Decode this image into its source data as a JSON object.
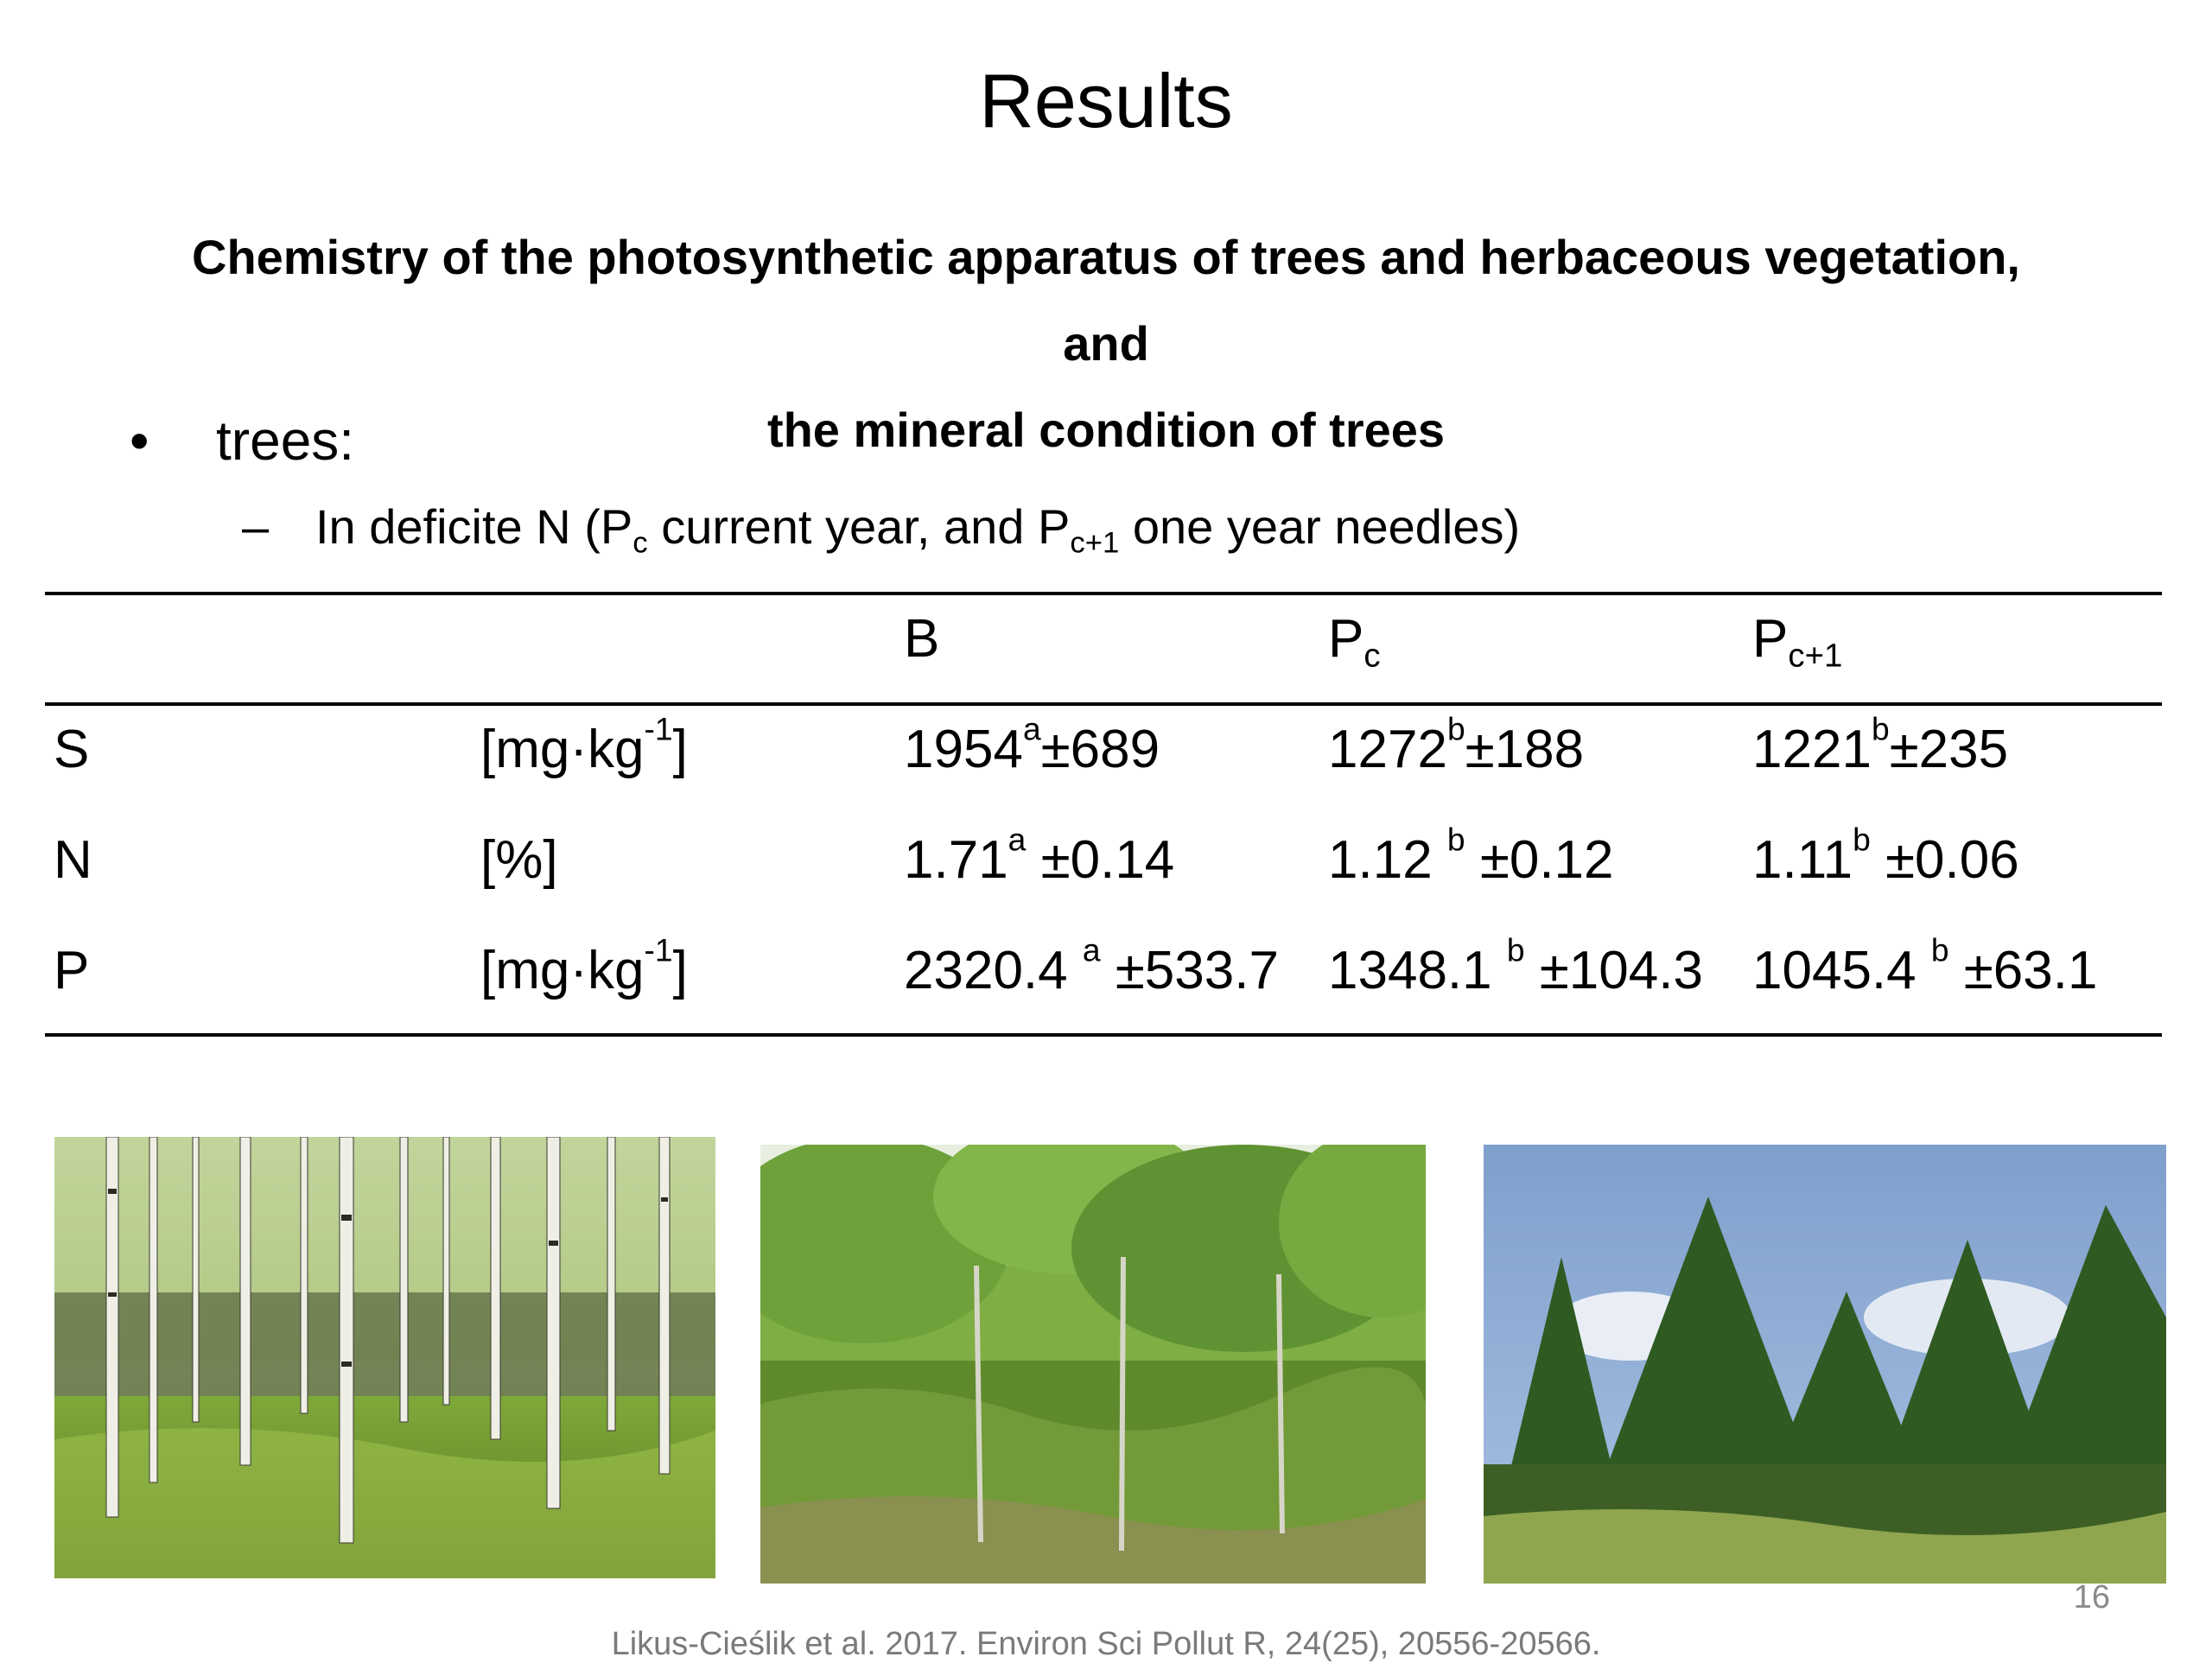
{
  "slide": {
    "title": "Results",
    "subtitle_line1": "Chemistry of the photosynthetic apparatus of trees and herbaceous vegetation, and",
    "subtitle_line2": "the mineral condition of trees",
    "bullet_main": "trees:",
    "bullet_sub_prefix": "In deficite N (P",
    "bullet_sub_sub1": "c",
    "bullet_sub_mid": "current year, and P",
    "bullet_sub_sub2": "c+1",
    "bullet_sub_suffix": " one year needles)",
    "page_number": "16",
    "citation": "Likus-Cieślik et al. 2017. Environ Sci Pollut R, 24(25), 20556-20566."
  },
  "table": {
    "headers": {
      "b": "B",
      "pc_base": "P",
      "pc_sub": "c",
      "pc1_base": "P",
      "pc1_sub": "c+1"
    },
    "rows": [
      {
        "element": "S",
        "unit_pre": "[mg·kg",
        "unit_sup": "-1",
        "unit_post": "]",
        "b_val": "1954",
        "b_sup": "a",
        "b_err": "±689",
        "pc_val": "1272",
        "pc_sup": "b",
        "pc_err": "±188",
        "pc1_val": "1221",
        "pc1_sup": "b",
        "pc1_err": "±235"
      },
      {
        "element": "N",
        "unit_pre": "[%]",
        "unit_sup": "",
        "unit_post": "",
        "b_val": "1.71",
        "b_sup": "a",
        "b_err": " ±0.14",
        "pc_val": "1.12 ",
        "pc_sup": "b",
        "pc_err": " ±0.12",
        "pc1_val": "1.11",
        "pc1_sup": "b",
        "pc1_err": " ±0.06"
      },
      {
        "element": "P",
        "unit_pre": "[mg·kg",
        "unit_sup": "-1",
        "unit_post": "]",
        "b_val": "2320.4 ",
        "b_sup": "a",
        "b_err": " ±533.7",
        "pc_val": "1348.1 ",
        "pc_sup": "b",
        "pc_err": " ±104.3",
        "pc1_val": "1045.4 ",
        "pc1_sup": "b",
        "pc1_err": " ±63.1"
      }
    ]
  },
  "photos": [
    "birch-forest-photo",
    "young-deciduous-stand-photo",
    "young-pine-stand-photo"
  ],
  "colors": {
    "text": "#000000",
    "muted": "#7a7a7a",
    "sky": "#8fb0d8",
    "foliage": "#5f8f32",
    "grass": "#6f9a2c"
  }
}
